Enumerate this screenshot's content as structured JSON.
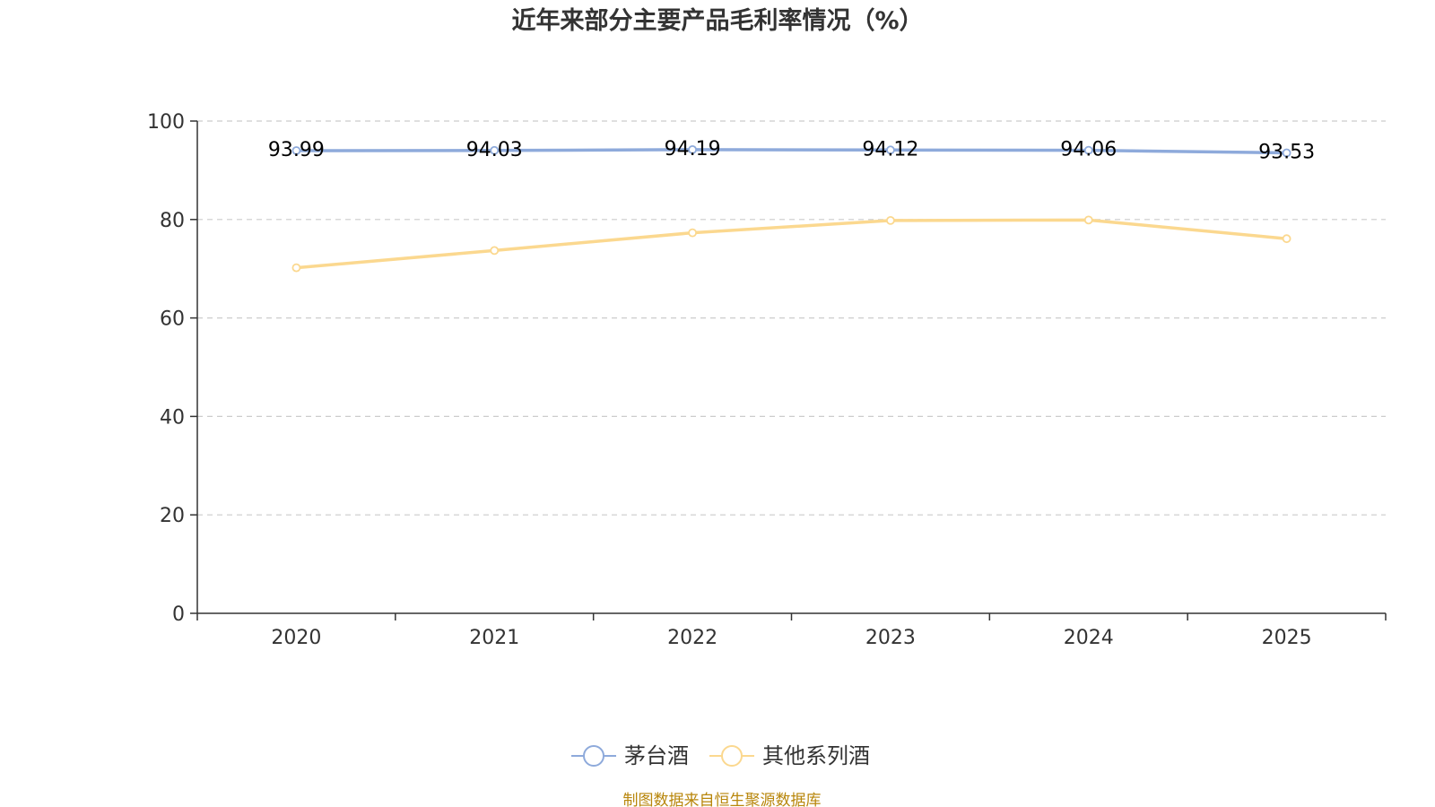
{
  "chart_data": {
    "type": "line",
    "title": "近年来部分主要产品毛利率情况（%）",
    "categories": [
      "2020",
      "2021",
      "2022",
      "2023",
      "2024",
      "2025"
    ],
    "ylim": [
      0,
      100
    ],
    "yticks": [
      "0",
      "20",
      "40",
      "60",
      "80",
      "100"
    ],
    "grid": true,
    "legend_position": "bottom-center",
    "series": [
      {
        "name": "茅台酒",
        "color": "#8eaadb",
        "values": [
          93.99,
          94.03,
          94.19,
          94.12,
          94.06,
          93.53
        ],
        "labels": [
          "93.99",
          "94.03",
          "94.19",
          "94.12",
          "94.06",
          "93.53"
        ]
      },
      {
        "name": "其他系列酒",
        "color": "#fbd88f",
        "values": [
          70.2,
          73.7,
          77.3,
          79.8,
          79.9,
          76.1
        ],
        "labels": []
      }
    ],
    "source": "制图数据来自恒生聚源数据库"
  }
}
